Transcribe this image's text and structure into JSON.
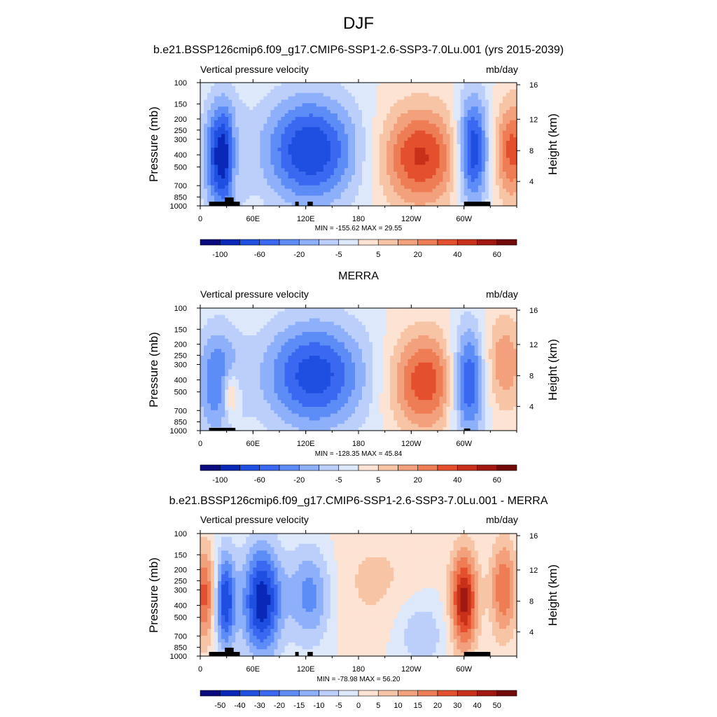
{
  "figure": {
    "season": "DJF",
    "panels": [
      {
        "title": "b.e21.BSSP126cmip6.f09_g17.CMIP6-SSP1-2.6-SSP3-7.0Lu.001 (yrs 2015-2039)",
        "subtitle_left": "Vertical pressure velocity",
        "subtitle_right": "mb/day",
        "y_left_label": "Pressure (mb)",
        "y_right_label": "Height (km)",
        "minmax": "MIN = -155.62  MAX =  29.55"
      },
      {
        "title": "MERRA",
        "subtitle_left": "Vertical pressure velocity",
        "subtitle_right": "mb/day",
        "y_left_label": "Pressure (mb)",
        "y_right_label": "Height (km)",
        "minmax": "MIN = -128.35  MAX =  45.84"
      },
      {
        "title": "b.e21.BSSP126cmip6.f09_g17.CMIP6-SSP1-2.6-SSP3-7.0Lu.001 - MERRA",
        "subtitle_left": "Vertical pressure velocity",
        "subtitle_right": "mb/day",
        "y_left_label": "Pressure (mb)",
        "y_right_label": "Height (km)",
        "minmax": "MIN = -78.98  MAX =  56.20"
      }
    ]
  },
  "chart_data": [
    {
      "type": "heatmap",
      "title": "b.e21.BSSP126cmip6.f09_g17.CMIP6-SSP1-2.6-SSP3-7.0Lu.001 (yrs 2015-2039)",
      "variable": "Vertical pressure velocity",
      "units": "mb/day",
      "xlabel": "",
      "ylabel": "Pressure (mb)",
      "y2label": "Height (km)",
      "x_ticks": [
        "0",
        "60E",
        "120E",
        "180",
        "120W",
        "60W"
      ],
      "x_range": [
        0,
        360
      ],
      "y_ticks": [
        "100",
        "150",
        "200",
        "250",
        "300",
        "400",
        "500",
        "700",
        "850",
        "1000"
      ],
      "y2_ticks": [
        "16",
        "12",
        "8",
        "4"
      ],
      "colorbar_ticks": [
        "-100",
        "-60",
        "-20",
        "-5",
        "5",
        "20",
        "40",
        "60"
      ],
      "colorbar_colors": [
        "#0a0a7e",
        "#0a28b8",
        "#1e4fe0",
        "#3a68f0",
        "#5d8cf7",
        "#8eb0fa",
        "#bccffa",
        "#dde8fb",
        "#fde3d3",
        "#f8c4a6",
        "#f3a07c",
        "#ee7d55",
        "#e4502e",
        "#c93019",
        "#a11810",
        "#720909"
      ],
      "min": -155.62,
      "max": 29.55
    },
    {
      "type": "heatmap",
      "title": "MERRA",
      "variable": "Vertical pressure velocity",
      "units": "mb/day",
      "xlabel": "",
      "ylabel": "Pressure (mb)",
      "y2label": "Height (km)",
      "x_ticks": [
        "0",
        "60E",
        "120E",
        "180",
        "120W",
        "60W"
      ],
      "x_range": [
        0,
        360
      ],
      "y_ticks": [
        "100",
        "150",
        "200",
        "250",
        "300",
        "400",
        "500",
        "700",
        "850",
        "1000"
      ],
      "y2_ticks": [
        "16",
        "12",
        "8",
        "4"
      ],
      "colorbar_ticks": [
        "-100",
        "-60",
        "-20",
        "-5",
        "5",
        "20",
        "40",
        "60"
      ],
      "colorbar_colors": [
        "#0a0a7e",
        "#0a28b8",
        "#1e4fe0",
        "#3a68f0",
        "#5d8cf7",
        "#8eb0fa",
        "#bccffa",
        "#dde8fb",
        "#fde3d3",
        "#f8c4a6",
        "#f3a07c",
        "#ee7d55",
        "#e4502e",
        "#c93019",
        "#a11810",
        "#720909"
      ],
      "min": -128.35,
      "max": 45.84
    },
    {
      "type": "heatmap",
      "title": "b.e21.BSSP126cmip6.f09_g17.CMIP6-SSP1-2.6-SSP3-7.0Lu.001 - MERRA",
      "variable": "Vertical pressure velocity",
      "units": "mb/day",
      "xlabel": "",
      "ylabel": "Pressure (mb)",
      "y2label": "Height (km)",
      "x_ticks": [
        "0",
        "60E",
        "120E",
        "180",
        "120W",
        "60W"
      ],
      "x_range": [
        0,
        360
      ],
      "y_ticks": [
        "100",
        "150",
        "200",
        "250",
        "300",
        "400",
        "500",
        "700",
        "850",
        "1000"
      ],
      "y2_ticks": [
        "16",
        "12",
        "8",
        "4"
      ],
      "colorbar_ticks": [
        "-50",
        "-40",
        "-30",
        "-20",
        "-15",
        "-10",
        "-5",
        "0",
        "5",
        "10",
        "15",
        "20",
        "30",
        "40",
        "50"
      ],
      "colorbar_colors": [
        "#0a0a7e",
        "#0a28b8",
        "#1e4fe0",
        "#3a68f0",
        "#5d8cf7",
        "#8eb0fa",
        "#bccffa",
        "#dde8fb",
        "#fde3d3",
        "#f8c4a6",
        "#f3a07c",
        "#ee7d55",
        "#e4502e",
        "#c93019",
        "#a11810",
        "#720909"
      ],
      "min": -78.98,
      "max": 56.2
    }
  ]
}
